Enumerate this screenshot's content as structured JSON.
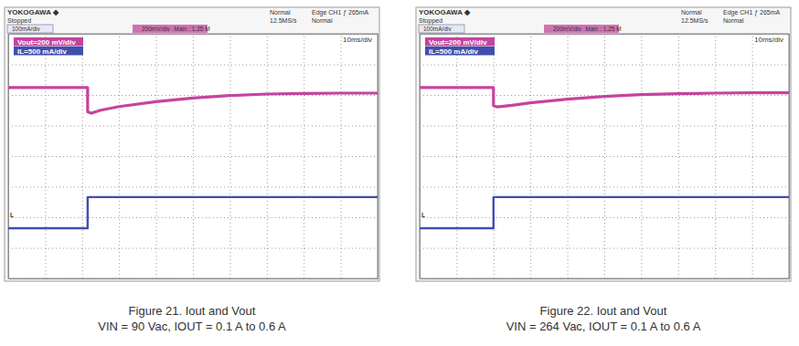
{
  "chart_data": [
    {
      "type": "line",
      "title": "Figure 21. Iout and Vout",
      "subtitle": "VIN = 90 Vac, IOUT = 0.1 A to 0.6 A",
      "annotations": [
        "YOKOGAWA ◆",
        "Stopped",
        "100mA/div",
        "200mV/div",
        "Normal",
        "12.5MS/s",
        "Edge CH1 ƒ 265mA",
        "Normal",
        "Main : 1.25 M",
        "10ms/div",
        "L"
      ],
      "x": [
        0,
        21.5,
        21.5,
        22.5,
        25,
        30,
        40,
        50,
        60,
        70,
        80,
        90,
        100
      ],
      "series": [
        {
          "name": "Vout=200 mV/div",
          "color": "#c4449e",
          "values": [
            2.24,
            2.24,
            1.45,
            1.4,
            1.5,
            1.62,
            1.78,
            1.9,
            1.98,
            2.03,
            2.05,
            2.06,
            2.06
          ]
        },
        {
          "name": "IL=500 mA/div",
          "color": "#3f4fae",
          "values": [
            -2.36,
            -2.36,
            -1.34,
            -1.34,
            -1.34,
            -1.34,
            -1.34,
            -1.34,
            -1.34,
            -1.34,
            -1.34,
            -1.34,
            -1.34
          ]
        }
      ],
      "xlim": [
        0,
        100
      ],
      "xticks": [
        0,
        10,
        20,
        30,
        40,
        50,
        60,
        70,
        80,
        90,
        100
      ],
      "ylim": [
        -4,
        4
      ],
      "yticks": [
        -4,
        -3,
        -2,
        -1,
        0,
        1,
        2,
        3,
        4
      ],
      "grid": true,
      "legend": "upper left",
      "tick_labels": false
    },
    {
      "type": "line",
      "title": "Figure 22. Iout and Vout",
      "subtitle": "VIN = 264 Vac, IOUT = 0.1 A to 0.6 A",
      "annotations": [
        "YOKOGAWA ◆",
        "Stopped",
        "100mA/div",
        "200mV/div",
        "Normal",
        "12.5MS/s",
        "Edge CH1 ƒ 265mA",
        "Normal",
        "Main : 1.25 M",
        "10ms/div",
        "L"
      ],
      "x": [
        0,
        20,
        20,
        21,
        25,
        30,
        40,
        50,
        60,
        70,
        80,
        90,
        100
      ],
      "series": [
        {
          "name": "Vout=200 mV/div",
          "color": "#c4449e",
          "values": [
            2.24,
            2.24,
            1.65,
            1.61,
            1.66,
            1.74,
            1.86,
            1.95,
            2.01,
            2.04,
            2.06,
            2.07,
            2.07
          ]
        },
        {
          "name": "IL=500 mA/div",
          "color": "#3f4fae",
          "values": [
            -2.36,
            -2.36,
            -1.34,
            -1.34,
            -1.34,
            -1.34,
            -1.34,
            -1.34,
            -1.34,
            -1.34,
            -1.34,
            -1.34,
            -1.34
          ]
        }
      ],
      "xlim": [
        0,
        100
      ],
      "xticks": [
        0,
        10,
        20,
        30,
        40,
        50,
        60,
        70,
        80,
        90,
        100
      ],
      "ylim": [
        -4,
        4
      ],
      "yticks": [
        -4,
        -3,
        -2,
        -1,
        0,
        1,
        2,
        3,
        4
      ],
      "grid": true,
      "legend": "upper left",
      "tick_labels": false
    }
  ]
}
